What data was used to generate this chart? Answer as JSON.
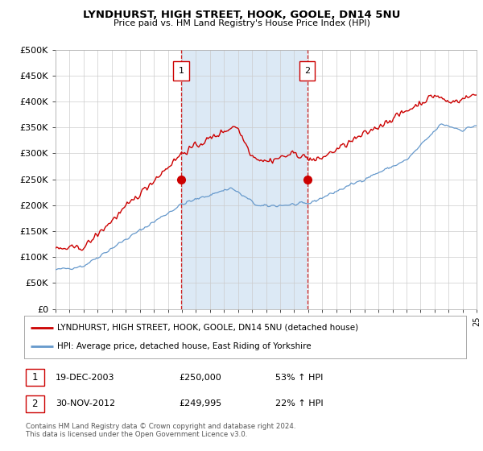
{
  "title": "LYNDHURST, HIGH STREET, HOOK, GOOLE, DN14 5NU",
  "subtitle": "Price paid vs. HM Land Registry's House Price Index (HPI)",
  "x_start_year": 1995,
  "x_end_year": 2025,
  "ylim": [
    0,
    500000
  ],
  "yticks": [
    0,
    50000,
    100000,
    150000,
    200000,
    250000,
    300000,
    350000,
    400000,
    450000,
    500000
  ],
  "ytick_labels": [
    "£0",
    "£50K",
    "£100K",
    "£150K",
    "£200K",
    "£250K",
    "£300K",
    "£350K",
    "£400K",
    "£450K",
    "£500K"
  ],
  "purchase1_year": 2003.97,
  "purchase1_price": 250000,
  "purchase1_label": "1",
  "purchase1_date": "19-DEC-2003",
  "purchase1_display_price": "£250,000",
  "purchase1_hpi_pct": "53% ↑ HPI",
  "purchase2_year": 2012.92,
  "purchase2_price": 249995,
  "purchase2_label": "2",
  "purchase2_date": "30-NOV-2012",
  "purchase2_display_price": "£249,995",
  "purchase2_hpi_pct": "22% ↑ HPI",
  "red_line_color": "#cc0000",
  "blue_line_color": "#6699cc",
  "shade_color": "#dce9f5",
  "grid_color": "#cccccc",
  "background_plot": "#dce9f5",
  "background_fig": "#ffffff",
  "legend_line1": "LYNDHURST, HIGH STREET, HOOK, GOOLE, DN14 5NU (detached house)",
  "legend_line2": "HPI: Average price, detached house, East Riding of Yorkshire",
  "footnote": "Contains HM Land Registry data © Crown copyright and database right 2024.\nThis data is licensed under the Open Government Licence v3.0."
}
